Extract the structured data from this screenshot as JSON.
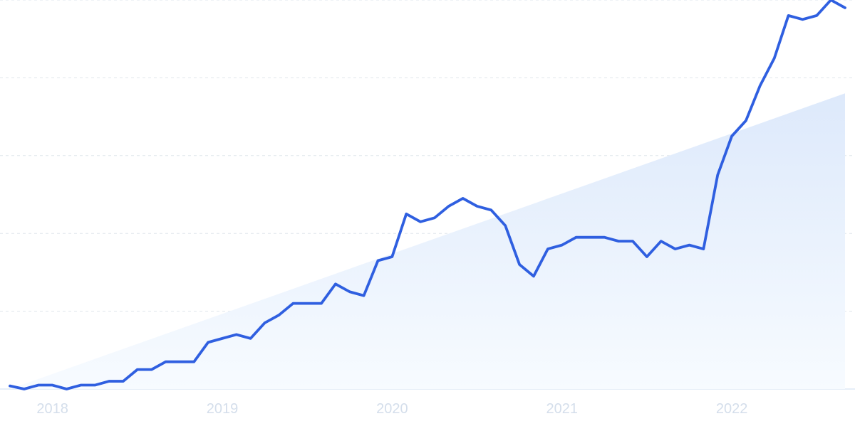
{
  "chart_data": {
    "type": "line",
    "title": "",
    "xlabel": "",
    "ylabel": "",
    "x_ticks": [
      "2018",
      "2019",
      "2020",
      "2021",
      "2022"
    ],
    "xlim": [
      "2017-10",
      "2022-09"
    ],
    "ylim": [
      0,
      100
    ],
    "grid": true,
    "legend": "none",
    "colors": {
      "line": "#2f5fe0",
      "area_top": "#dde9fb",
      "area_bottom": "#f7fbff",
      "grid": "#dfe5ec",
      "baseline": "#d7e3f4",
      "tick_label": "#d4deeb"
    },
    "trend_area": {
      "x": [
        "2017-10",
        "2022-09"
      ],
      "values": [
        0,
        76
      ]
    },
    "x": [
      "2017-10",
      "2017-11",
      "2017-12",
      "2018-01",
      "2018-02",
      "2018-03",
      "2018-04",
      "2018-05",
      "2018-06",
      "2018-07",
      "2018-08",
      "2018-09",
      "2018-10",
      "2018-11",
      "2018-12",
      "2019-01",
      "2019-02",
      "2019-03",
      "2019-04",
      "2019-05",
      "2019-06",
      "2019-07",
      "2019-08",
      "2019-09",
      "2019-10",
      "2019-11",
      "2019-12",
      "2020-01",
      "2020-02",
      "2020-03",
      "2020-04",
      "2020-05",
      "2020-06",
      "2020-07",
      "2020-08",
      "2020-09",
      "2020-10",
      "2020-11",
      "2020-12",
      "2021-01",
      "2021-02",
      "2021-03",
      "2021-04",
      "2021-05",
      "2021-06",
      "2021-07",
      "2021-08",
      "2021-09",
      "2021-10",
      "2021-11",
      "2021-12",
      "2022-01",
      "2022-02",
      "2022-03",
      "2022-04",
      "2022-05",
      "2022-06",
      "2022-07",
      "2022-08",
      "2022-09"
    ],
    "series": [
      {
        "values": [
          0.8,
          0.0,
          1.0,
          1.0,
          0.0,
          1.0,
          1.0,
          2.0,
          2.0,
          5.0,
          5.0,
          7.0,
          7.0,
          7.0,
          12.0,
          13.0,
          14.0,
          13.0,
          17.0,
          19.0,
          22.0,
          22.0,
          22.0,
          27.0,
          25.0,
          24.0,
          33.0,
          34.0,
          45.0,
          43.0,
          44.0,
          47.0,
          49.0,
          47.0,
          46.0,
          42.0,
          32.0,
          29.0,
          36.0,
          37.0,
          39.0,
          39.0,
          39.0,
          38.0,
          38.0,
          34.0,
          38.0,
          36.0,
          37.0,
          36.0,
          55.0,
          65.0,
          69.0,
          78.0,
          85.0,
          96.0,
          95.0,
          96.0,
          100.0,
          98.0
        ]
      }
    ]
  }
}
